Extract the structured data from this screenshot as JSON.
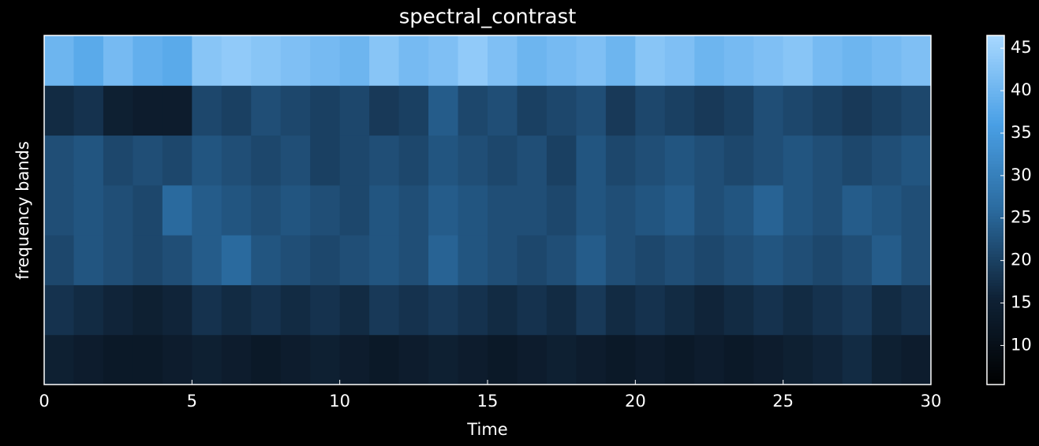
{
  "chart_data": {
    "type": "heatmap",
    "title": "spectral_contrast",
    "xlabel": "Time",
    "ylabel": "frequency bands",
    "x": [
      0,
      1,
      2,
      3,
      4,
      5,
      6,
      7,
      8,
      9,
      10,
      11,
      12,
      13,
      14,
      15,
      16,
      17,
      18,
      19,
      20,
      21,
      22,
      23,
      24,
      25,
      26,
      27,
      28,
      29
    ],
    "xlim": [
      0,
      30
    ],
    "xticks": [
      0,
      5,
      10,
      15,
      20,
      25,
      30
    ],
    "z": [
      [
        15,
        14,
        13,
        13,
        14,
        15,
        14,
        13,
        14,
        15,
        14,
        13,
        14,
        15,
        14,
        13,
        14,
        15,
        14,
        13,
        14,
        13,
        14,
        13,
        14,
        15,
        16,
        17,
        15,
        14
      ],
      [
        18,
        17,
        16,
        15,
        16,
        18,
        17,
        18,
        17,
        18,
        17,
        19,
        18,
        19,
        18,
        17,
        18,
        17,
        19,
        17,
        18,
        17,
        16,
        17,
        18,
        17,
        18,
        19,
        17,
        18
      ],
      [
        21,
        23,
        22,
        21,
        22,
        24,
        26,
        23,
        22,
        21,
        22,
        23,
        22,
        25,
        23,
        22,
        21,
        22,
        24,
        22,
        21,
        22,
        21,
        22,
        23,
        22,
        21,
        22,
        24,
        22
      ],
      [
        22,
        23,
        22,
        21,
        26,
        24,
        23,
        22,
        23,
        22,
        21,
        23,
        22,
        24,
        23,
        22,
        22,
        21,
        23,
        22,
        23,
        24,
        22,
        23,
        25,
        23,
        22,
        24,
        23,
        22
      ],
      [
        22,
        23,
        21,
        22,
        21,
        23,
        22,
        21,
        22,
        20,
        21,
        22,
        21,
        23,
        22,
        21,
        22,
        20,
        23,
        21,
        22,
        23,
        22,
        21,
        22,
        23,
        22,
        21,
        22,
        23
      ],
      [
        17,
        18,
        15,
        14,
        14,
        21,
        20,
        22,
        21,
        20,
        21,
        19,
        20,
        24,
        21,
        22,
        20,
        21,
        22,
        19,
        21,
        20,
        19,
        20,
        22,
        21,
        20,
        19,
        20,
        21
      ],
      [
        40,
        38,
        41,
        39,
        38,
        43,
        44,
        43,
        42,
        41,
        40,
        43,
        41,
        42,
        44,
        42,
        40,
        41,
        42,
        40,
        43,
        42,
        40,
        41,
        42,
        43,
        41,
        40,
        41,
        42
      ]
    ],
    "clim": [
      5.4,
      46.5
    ],
    "cticks": [
      10,
      15,
      20,
      25,
      30,
      35,
      40,
      45
    ],
    "colormap": [
      "#000000",
      "#0f2236",
      "#2a6a9e",
      "#4aa0e6",
      "#a8d8ff"
    ]
  }
}
